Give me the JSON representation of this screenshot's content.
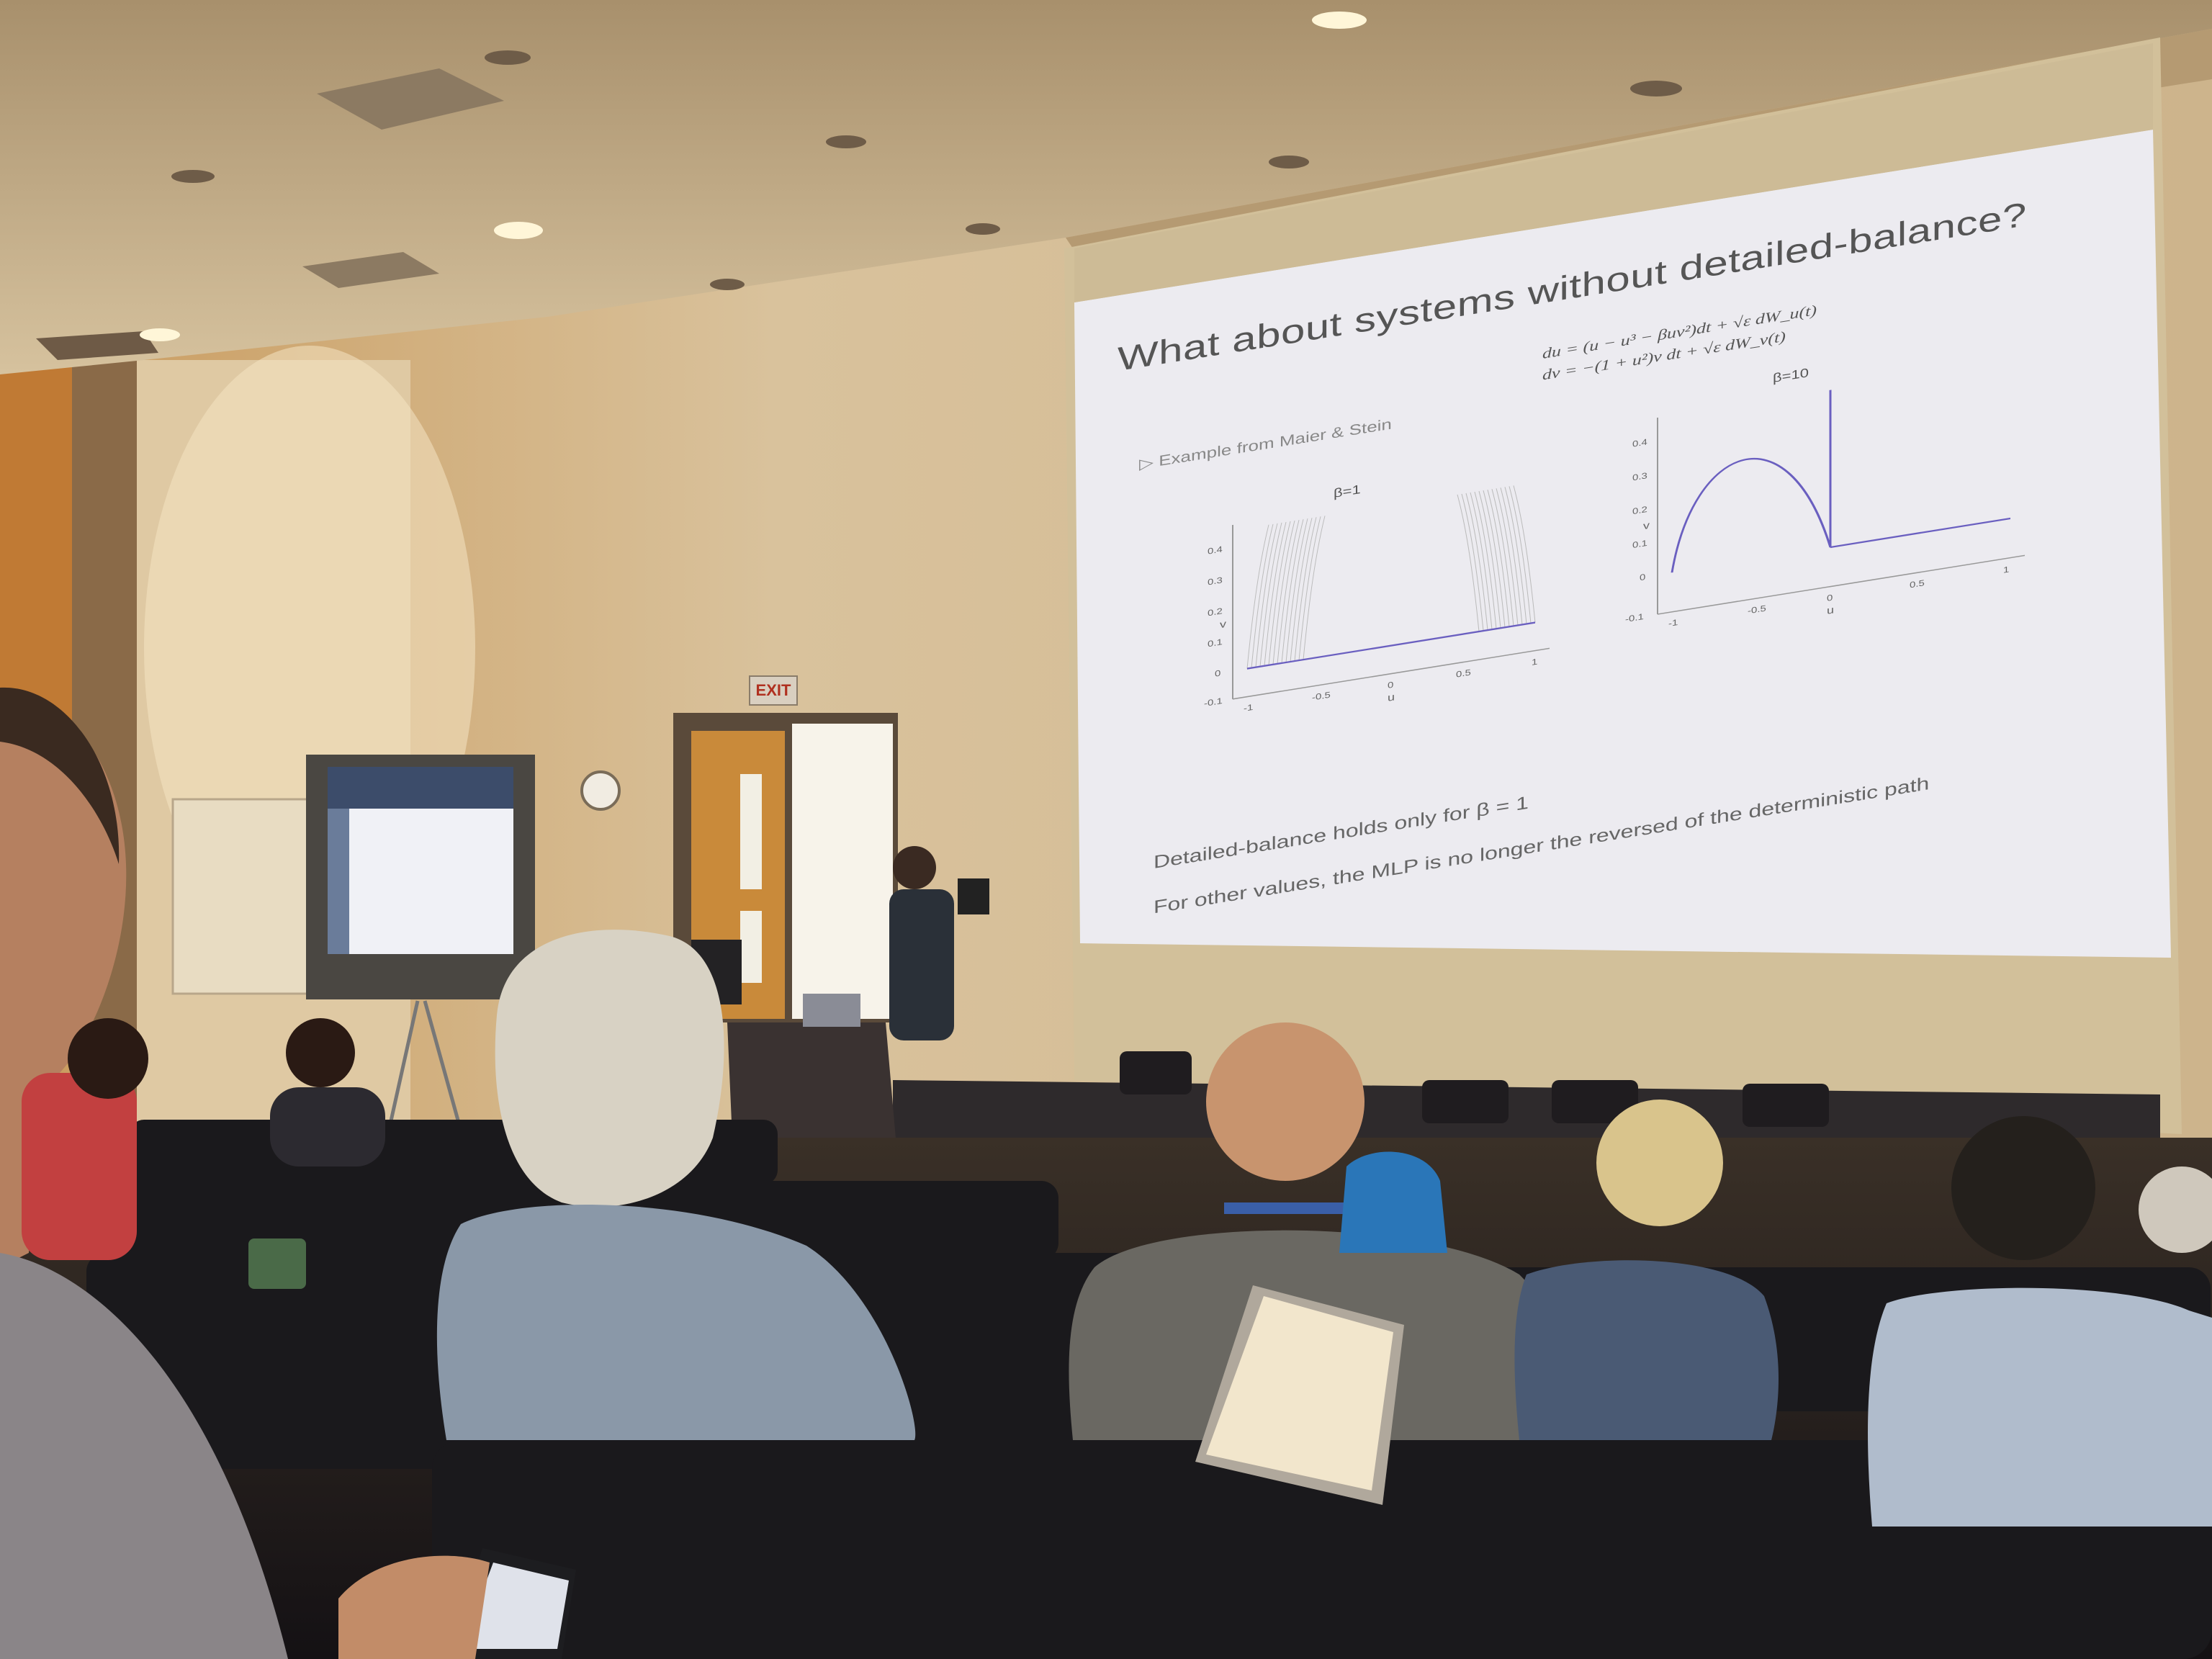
{
  "scene": {
    "description_tag": "lecture-hall-photo"
  },
  "slide": {
    "title": "What about systems without detailed-balance?",
    "equation_line1": "du = (u − u³ − βuv²)dt + √ε dW_u(t)",
    "equation_line2": "dv = −(1 + u²)v dt + √ε dW_v(t)",
    "bullet": "▷ Example from Maier & Stein",
    "line1": "Detailed-balance holds only for β = 1",
    "line2": "For other values, the MLP is no longer  the reversed of the deterministic path",
    "plot_left": {
      "title": "β=1",
      "xlabel": "u",
      "ylabel": "v",
      "xticks": [
        "-1",
        "-0.5",
        "0",
        "0.5",
        "1"
      ],
      "yticks": [
        "-0.1",
        "0",
        "0.1",
        "0.2",
        "0.3",
        "0.4"
      ]
    },
    "plot_right": {
      "title": "β=10",
      "xlabel": "u",
      "ylabel": "v",
      "xticks": [
        "-1",
        "-0.5",
        "0",
        "0.5",
        "1"
      ],
      "yticks": [
        "-0.1",
        "0",
        "0.1",
        "0.2",
        "0.3",
        "0.4"
      ]
    }
  },
  "signage": {
    "exit": "EXIT"
  },
  "colors": {
    "wall": "#d8c29a",
    "ceiling": "#cbb58c",
    "screen": "#ece9ef",
    "seat": "#1b1a1d",
    "curve": "#6a5fc0"
  }
}
